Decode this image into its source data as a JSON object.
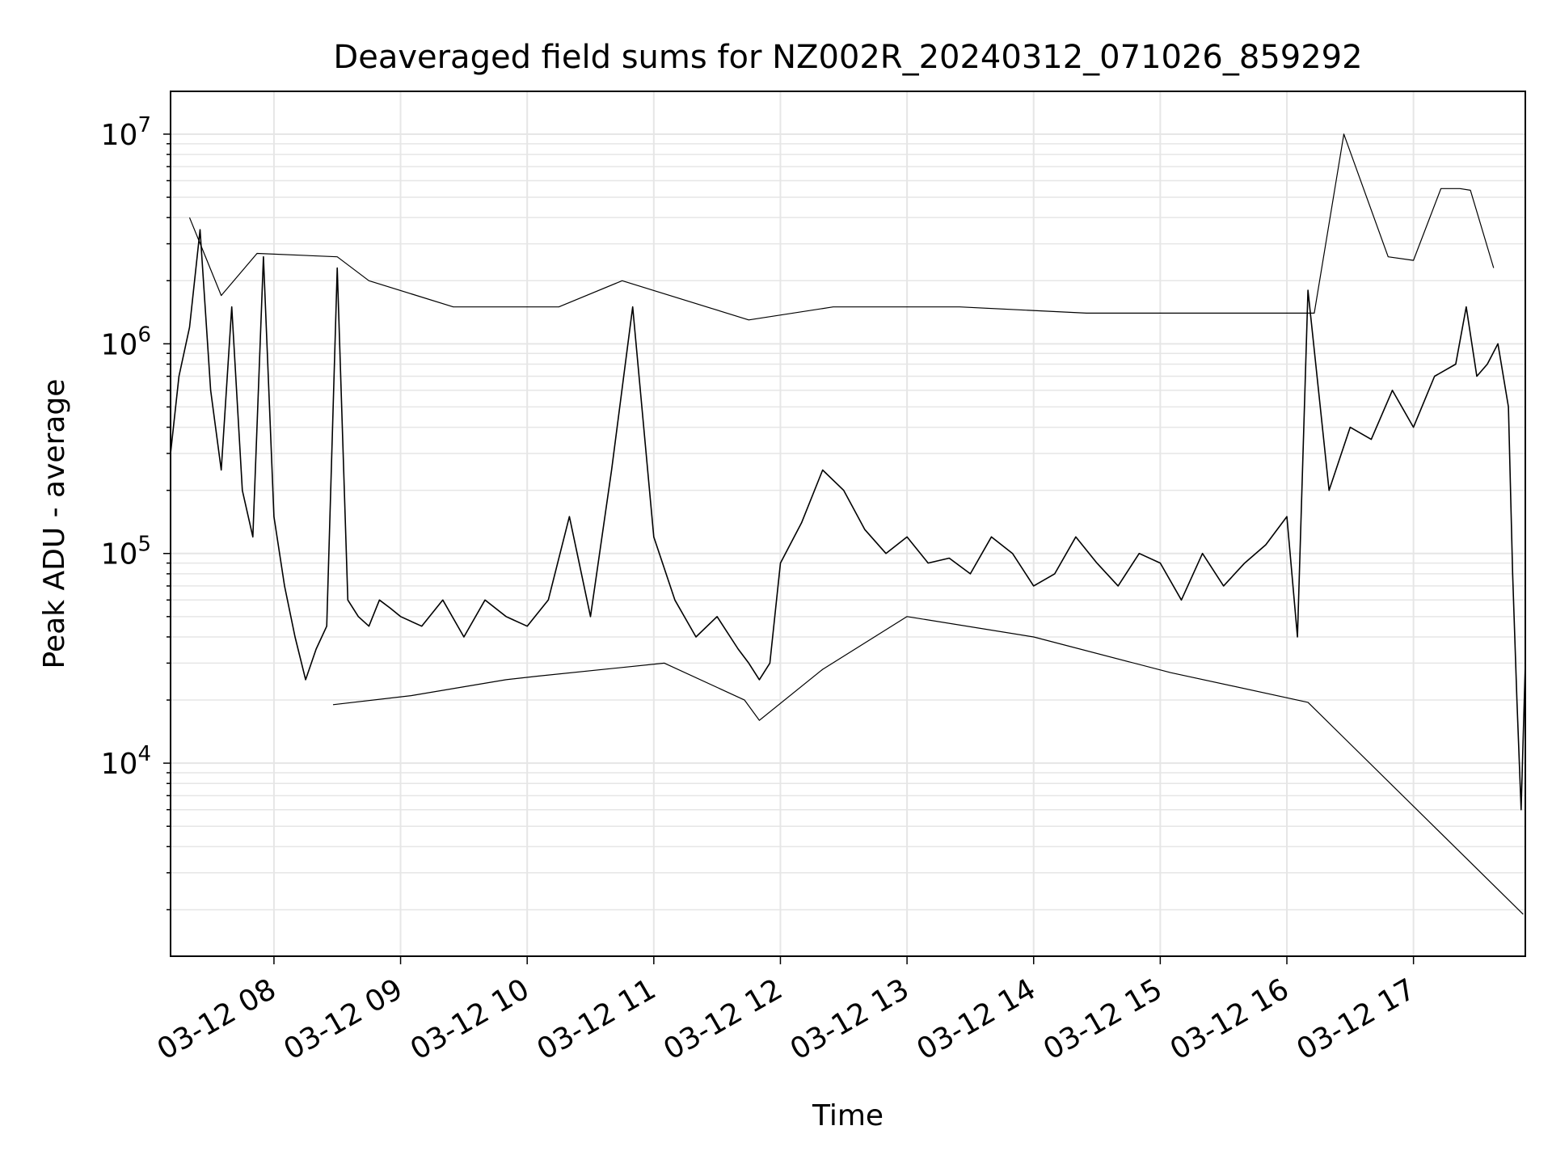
{
  "chart_data": {
    "type": "line",
    "title": "Deaveraged field sums for NZ002R_20240312_071026_859292",
    "xlabel": "Time",
    "ylabel": "Peak ADU - average",
    "y_scale": "log",
    "ylim": [
      1200,
      16000000
    ],
    "xlim": [
      "03-12 07:11",
      "03-12 17:53"
    ],
    "grid": true,
    "legend": "none",
    "line_color": "#000000",
    "x_ticks": [
      "03-12 08",
      "03-12 09",
      "03-12 10",
      "03-12 11",
      "03-12 12",
      "03-12 13",
      "03-12 14",
      "03-12 15",
      "03-12 16",
      "03-12 17"
    ],
    "y_ticks": [
      {
        "value": 10000,
        "base": "10",
        "exp": "4"
      },
      {
        "value": 100000,
        "base": "10",
        "exp": "5"
      },
      {
        "value": 1000000,
        "base": "10",
        "exp": "6"
      },
      {
        "value": 10000000,
        "base": "10",
        "exp": "7"
      }
    ],
    "series": [
      {
        "x": [
          "03-12 07:11",
          "03-12 07:15",
          "03-12 07:20",
          "03-12 07:25",
          "03-12 07:30",
          "03-12 07:35",
          "03-12 07:40",
          "03-12 07:45",
          "03-12 07:50",
          "03-12 07:55",
          "03-12 08:00",
          "03-12 08:05",
          "03-12 08:10",
          "03-12 08:15",
          "03-12 08:20",
          "03-12 08:25",
          "03-12 08:30",
          "03-12 08:35",
          "03-12 08:40",
          "03-12 08:45",
          "03-12 08:50",
          "03-12 08:55",
          "03-12 09:00",
          "03-12 09:10",
          "03-12 09:20",
          "03-12 09:30",
          "03-12 09:40",
          "03-12 09:50",
          "03-12 10:00",
          "03-12 10:10",
          "03-12 10:20",
          "03-12 10:30",
          "03-12 10:40",
          "03-12 10:50",
          "03-12 11:00",
          "03-12 11:10",
          "03-12 11:20",
          "03-12 11:30",
          "03-12 11:40",
          "03-12 11:45",
          "03-12 11:50",
          "03-12 11:55",
          "03-12 12:00",
          "03-12 12:10",
          "03-12 12:20",
          "03-12 12:30",
          "03-12 12:40",
          "03-12 12:50",
          "03-12 13:00",
          "03-12 13:10",
          "03-12 13:20",
          "03-12 13:30",
          "03-12 13:40",
          "03-12 13:50",
          "03-12 14:00",
          "03-12 14:10",
          "03-12 14:20",
          "03-12 14:30",
          "03-12 14:40",
          "03-12 14:50",
          "03-12 15:00",
          "03-12 15:10",
          "03-12 15:20",
          "03-12 15:30",
          "03-12 15:40",
          "03-12 15:50",
          "03-12 16:00",
          "03-12 16:05",
          "03-12 16:10",
          "03-12 16:20",
          "03-12 16:30",
          "03-12 16:40",
          "03-12 16:50",
          "03-12 17:00",
          "03-12 17:10",
          "03-12 17:20",
          "03-12 17:25",
          "03-12 17:30",
          "03-12 17:35",
          "03-12 17:40",
          "03-12 17:45",
          "03-12 17:47",
          "03-12 17:49",
          "03-12 17:51",
          "03-12 17:53"
        ],
        "y": [
          300000,
          700000,
          1200000,
          3500000,
          600000,
          250000,
          1500000,
          200000,
          120000,
          2600000,
          150000,
          70000,
          40000,
          25000,
          35000,
          45000,
          2300000,
          60000,
          50000,
          45000,
          60000,
          55000,
          50000,
          45000,
          60000,
          40000,
          60000,
          50000,
          45000,
          60000,
          150000,
          50000,
          250000,
          1500000,
          120000,
          60000,
          40000,
          50000,
          35000,
          30000,
          25000,
          30000,
          90000,
          140000,
          250000,
          200000,
          130000,
          100000,
          120000,
          90000,
          95000,
          80000,
          120000,
          100000,
          70000,
          80000,
          120000,
          90000,
          70000,
          100000,
          90000,
          60000,
          100000,
          70000,
          90000,
          110000,
          150000,
          40000,
          1800000,
          200000,
          400000,
          350000,
          600000,
          400000,
          700000,
          800000,
          1500000,
          700000,
          800000,
          1000000,
          500000,
          80000,
          20000,
          6000,
          30000
        ]
      },
      {
        "x": [
          "03-12 07:20",
          "03-12 07:35",
          "03-12 07:52",
          "03-12 08:30",
          "03-12 08:45",
          "03-12 09:25",
          "03-12 10:15",
          "03-12 10:45",
          "03-12 11:45",
          "03-12 12:25",
          "03-12 13:00",
          "03-12 13:25",
          "03-12 14:25",
          "03-12 15:10",
          "03-12 16:13",
          "03-12 16:27",
          "03-12 16:48",
          "03-12 17:00",
          "03-12 17:13",
          "03-12 17:22",
          "03-12 17:27",
          "03-12 17:38"
        ],
        "y": [
          4000000,
          1700000,
          2700000,
          2600000,
          2000000,
          1500000,
          1500000,
          2000000,
          1300000,
          1500000,
          1500000,
          1500000,
          1400000,
          1400000,
          1400000,
          10000000,
          2600000,
          2500000,
          5500000,
          5500000,
          5400000,
          2300000
        ]
      },
      {
        "x": [
          "03-12 08:28",
          "03-12 09:05",
          "03-12 09:50",
          "03-12 10:05",
          "03-12 11:05",
          "03-12 11:43",
          "03-12 11:50",
          "03-12 12:20",
          "03-12 13:00",
          "03-12 14:00",
          "03-12 15:05",
          "03-12 16:10",
          "03-12 17:52"
        ],
        "y": [
          19000,
          21000,
          25000,
          26000,
          30000,
          20000,
          16000,
          28000,
          50000,
          40000,
          27000,
          19500,
          1900
        ]
      }
    ]
  }
}
